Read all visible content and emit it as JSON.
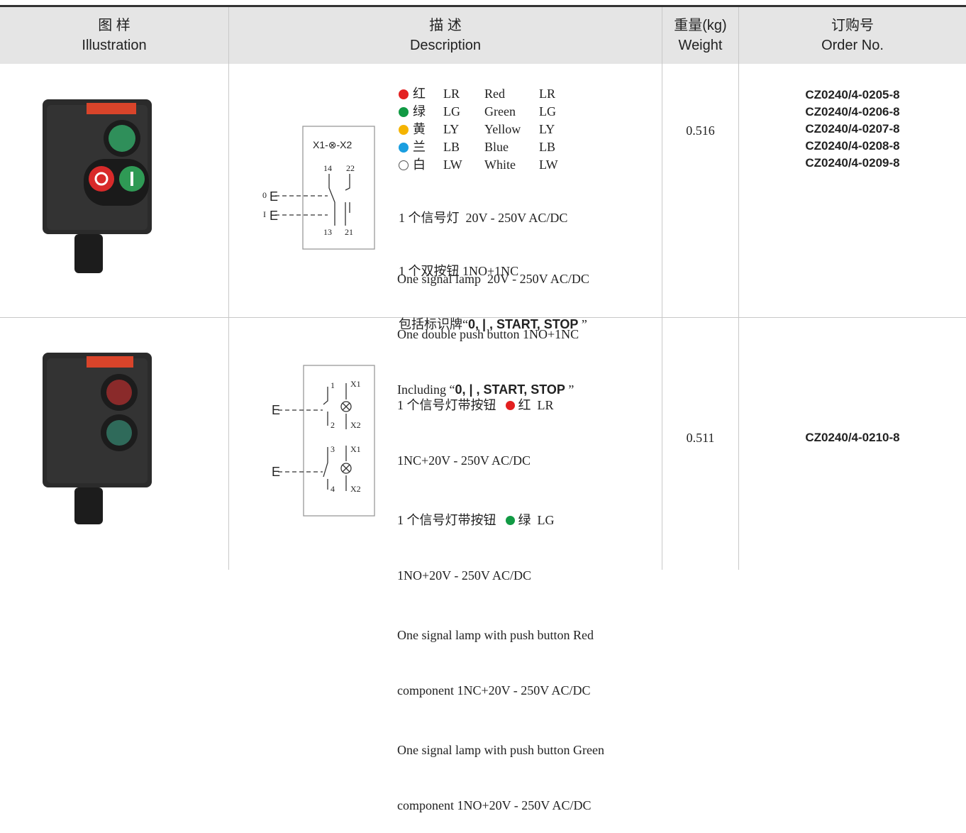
{
  "header": [
    {
      "zh": "图 样",
      "en": "Illustration"
    },
    {
      "zh": "描 述",
      "en": "Description"
    },
    {
      "zh": "重量(kg)",
      "en": "Weight"
    },
    {
      "zh": "订购号",
      "en": "Order No."
    }
  ],
  "rows": [
    {
      "diagram": {
        "lamp": "X1-⊗-X2",
        "top": [
          "14",
          "22"
        ],
        "bottom": [
          "13",
          "21"
        ],
        "inputs": [
          "0",
          "I"
        ]
      },
      "colors": [
        {
          "zh": "红",
          "code": "LR",
          "en": "Red"
        },
        {
          "zh": "绿",
          "code": "LG",
          "en": "Green"
        },
        {
          "zh": "黄",
          "code": "LY",
          "en": "Yellow"
        },
        {
          "zh": "兰",
          "code": "LB",
          "en": "Blue"
        },
        {
          "zh": "白",
          "code": "LW",
          "en": "White"
        }
      ],
      "zh_lines": [
        "1 个信号灯  20V - 250V AC/DC",
        "1 个双按钮 1NO+1NC"
      ],
      "zh_marking": {
        "before": "包括标识牌“",
        "bold": "0, | , START, STOP",
        "after": " ”"
      },
      "en_lines": [
        "One signal lamp  20V - 250V AC/DC",
        "One double push button 1NO+1NC"
      ],
      "en_marking": {
        "before": "Including “",
        "bold": "0, | , START, STOP",
        "after": " ”"
      },
      "weight": "0.516",
      "order_no": [
        "CZ0240/4-0205-8",
        "CZ0240/4-0206-8",
        "CZ0240/4-0207-8",
        "CZ0240/4-0208-8",
        "CZ0240/4-0209-8"
      ]
    },
    {
      "diagram": {
        "labels": [
          "1",
          "X1",
          "2",
          "X2",
          "3",
          "X1",
          "4",
          "X2"
        ]
      },
      "items": [
        {
          "zh": "1 个信号灯带按钮",
          "color": "红",
          "code": "LR",
          "spec": "1NC+20V - 250V AC/DC"
        },
        {
          "zh": "1 个信号灯带按钮",
          "color": "绿",
          "code": "LG",
          "spec": "1NO+20V - 250V AC/DC"
        }
      ],
      "en_paragraphs": [
        [
          "One signal lamp with push button Red",
          "component 1NC+20V - 250V AC/DC"
        ],
        [
          "One signal lamp with push button Green",
          "component 1NO+20V - 250V AC/DC"
        ]
      ],
      "weight": "0.511",
      "order_no": [
        "CZ0240/4-0210-8"
      ]
    }
  ]
}
